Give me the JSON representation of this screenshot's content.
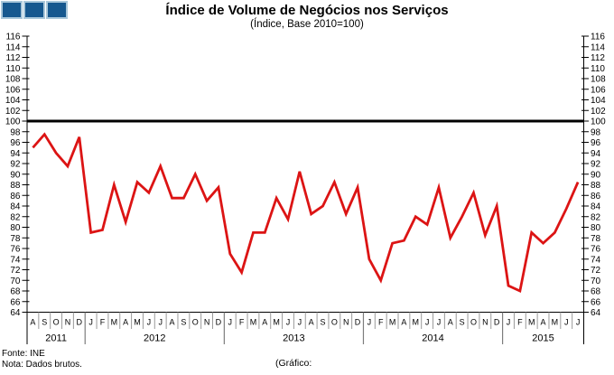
{
  "logo": {
    "square_fill": "#16588f",
    "square_border": "#a9c7da",
    "square_count": 3
  },
  "chart_data": {
    "type": "line",
    "title": "Índice de Volume de Negócios nos Serviços",
    "subtitle": "(Índice, Base 2010=100)",
    "xlabel": "",
    "ylabel": "",
    "ylim": [
      64,
      116
    ],
    "ytick_step": 2,
    "y_axis_sides": "both",
    "grid": false,
    "legend": "none",
    "reference_line": {
      "value": 100,
      "color": "#000000",
      "width": 3
    },
    "months": [
      "A",
      "S",
      "O",
      "N",
      "D",
      "J",
      "F",
      "M",
      "A",
      "M",
      "J",
      "J",
      "A",
      "S",
      "O",
      "N",
      "D",
      "J",
      "F",
      "M",
      "A",
      "M",
      "J",
      "J",
      "A",
      "S",
      "O",
      "N",
      "D",
      "J",
      "F",
      "M",
      "A",
      "M",
      "J",
      "J",
      "A",
      "S",
      "O",
      "N",
      "D",
      "J",
      "F",
      "M",
      "A",
      "M",
      "J",
      "J"
    ],
    "years": [
      {
        "label": "2011",
        "months": 5
      },
      {
        "label": "2012",
        "months": 12
      },
      {
        "label": "2013",
        "months": 12
      },
      {
        "label": "2014",
        "months": 12
      },
      {
        "label": "2015",
        "months": 7
      }
    ],
    "series": [
      {
        "name": "Índice de Volume de Negócios nos Serviços",
        "color": "#dc1414",
        "values": [
          95,
          97.5,
          94,
          91.5,
          97,
          79,
          79.5,
          88,
          81,
          88.5,
          86.5,
          91.5,
          85.5,
          85.5,
          90,
          85,
          87.5,
          75,
          71.5,
          79,
          79,
          85.5,
          81.5,
          90.5,
          82.5,
          84,
          88.5,
          82.5,
          87.5,
          74,
          70,
          77,
          77.5,
          82,
          80.5,
          87.5,
          78,
          82,
          86.5,
          78.5,
          84,
          69,
          68,
          79,
          77,
          79,
          83.5,
          88.5
        ]
      }
    ]
  },
  "footer": {
    "source": "Fonte: INE",
    "note": "Nota: Dados brutos.",
    "caption": "(Gráfico:"
  }
}
